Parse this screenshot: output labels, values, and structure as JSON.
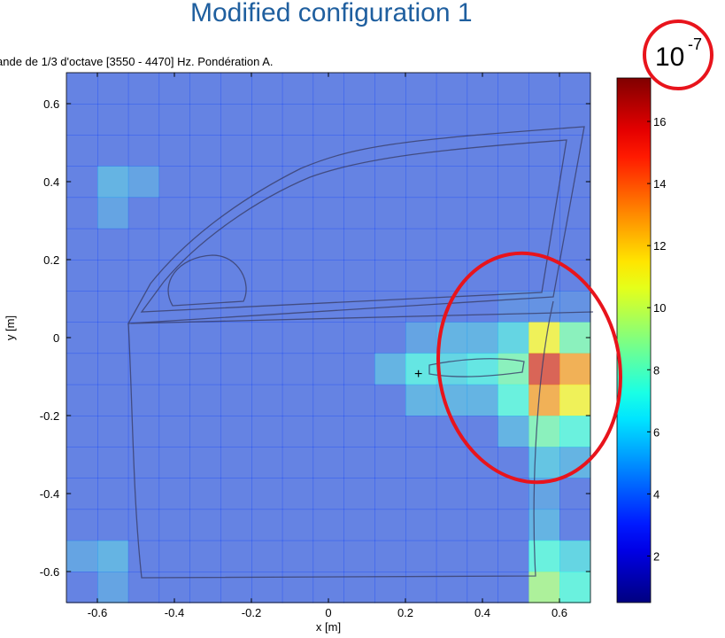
{
  "chart_data": {
    "type": "heatmap",
    "title": "Modified configuration 1",
    "subtitle": "ande de 1/3 d'octave [3550 - 4470] Hz. Pondération A.",
    "x_label": "x [m]",
    "y_label": "y [m]",
    "scale_annotation": {
      "base": "10",
      "exponent": "-7"
    },
    "x": [
      -0.64,
      -0.56,
      -0.48,
      -0.4,
      -0.32,
      -0.24,
      -0.16,
      -0.08,
      0,
      0.08,
      0.16,
      0.24,
      0.32,
      0.4,
      0.48,
      0.56,
      0.64
    ],
    "y": [
      0.64,
      0.56,
      0.48,
      0.4,
      0.32,
      0.24,
      0.16,
      0.08,
      0,
      -0.08,
      -0.16,
      -0.24,
      -0.32,
      -0.4,
      -0.48,
      -0.56,
      -0.64
    ],
    "z": [
      [
        3.5,
        3.5,
        3.5,
        3.5,
        3.5,
        3.5,
        3.5,
        3.5,
        3.5,
        3.5,
        3.5,
        3.5,
        3.5,
        3.5,
        3.5,
        3.5,
        3.5
      ],
      [
        3.5,
        3.5,
        3.5,
        3.5,
        3.5,
        3.5,
        3.5,
        3.5,
        3.5,
        3.5,
        3.5,
        3.5,
        3.5,
        3.5,
        3.5,
        3.5,
        3.5
      ],
      [
        3.5,
        3.5,
        3.5,
        3.5,
        3.5,
        3.5,
        3.5,
        3.5,
        3.5,
        3.5,
        3.5,
        3.5,
        3.5,
        3.5,
        3.5,
        3.5,
        3.5
      ],
      [
        3.5,
        5,
        4.5,
        3.5,
        3.5,
        3.5,
        3.5,
        3.5,
        3.5,
        3.5,
        3.5,
        3.5,
        3.5,
        3.5,
        3.5,
        3.5,
        3.5
      ],
      [
        3.5,
        4.5,
        3.5,
        3.5,
        3.5,
        3.5,
        3.5,
        3.5,
        3.5,
        3.5,
        3.5,
        3.5,
        3.5,
        3.5,
        3.5,
        3.5,
        3.5
      ],
      [
        3.5,
        3.5,
        3.5,
        3.5,
        3.5,
        3.5,
        3.5,
        3.5,
        3.5,
        3.5,
        3.5,
        3.5,
        3.5,
        3.5,
        3.5,
        3.5,
        3.5
      ],
      [
        3.5,
        3.5,
        3.5,
        3.5,
        3.5,
        3.5,
        3.5,
        3.5,
        3.5,
        3.5,
        3.5,
        3.5,
        3.5,
        3.5,
        3.5,
        3.5,
        3.5
      ],
      [
        3.5,
        3.5,
        3.5,
        3.5,
        3.5,
        3.5,
        3.5,
        3.5,
        3.5,
        3.5,
        3.5,
        3.5,
        3.5,
        3.5,
        4,
        4,
        4
      ],
      [
        3.5,
        3.5,
        3.5,
        3.5,
        3.5,
        3.5,
        3.5,
        3.5,
        3.5,
        3.5,
        3.5,
        4.5,
        5,
        5,
        6,
        11,
        8
      ],
      [
        3.5,
        3.5,
        3.5,
        3.5,
        3.5,
        3.5,
        3.5,
        3.5,
        3.5,
        3.5,
        5,
        6.5,
        6,
        6.5,
        8,
        16,
        13
      ],
      [
        3.5,
        3.5,
        3.5,
        3.5,
        3.5,
        3.5,
        3.5,
        3.5,
        3.5,
        3.5,
        3.5,
        5,
        5,
        5,
        7,
        13,
        11
      ],
      [
        3.5,
        3.5,
        3.5,
        3.5,
        3.5,
        3.5,
        3.5,
        3.5,
        3.5,
        3.5,
        3.5,
        3.5,
        3.5,
        3.5,
        5,
        8,
        7
      ],
      [
        3.5,
        3.5,
        3.5,
        3.5,
        3.5,
        3.5,
        3.5,
        3.5,
        3.5,
        3.5,
        3.5,
        3.5,
        3.5,
        3.5,
        3.5,
        5.5,
        5
      ],
      [
        3.5,
        3.5,
        3.5,
        3.5,
        3.5,
        3.5,
        3.5,
        3.5,
        3.5,
        3.5,
        3.5,
        3.5,
        3.5,
        3.5,
        3.5,
        4.5,
        3.5
      ],
      [
        3.5,
        3.5,
        3.5,
        3.5,
        3.5,
        3.5,
        3.5,
        3.5,
        3.5,
        3.5,
        3.5,
        3.5,
        3.5,
        3.5,
        3.5,
        5,
        3.5
      ],
      [
        4.5,
        5,
        3.5,
        3.5,
        3.5,
        3.5,
        3.5,
        3.5,
        3.5,
        3.5,
        3.5,
        3.5,
        3.5,
        3.5,
        3.5,
        7,
        6
      ],
      [
        3.5,
        4.5,
        3.5,
        3.5,
        3.5,
        3.5,
        3.5,
        3.5,
        3.5,
        3.5,
        3.5,
        3.5,
        3.5,
        3.5,
        3.5,
        9,
        7
      ]
    ],
    "xlim": [
      -0.68,
      0.68
    ],
    "ylim": [
      -0.68,
      0.68
    ],
    "xticks": [
      -0.6,
      -0.4,
      -0.2,
      0,
      0.2,
      0.4,
      0.6
    ],
    "yticks": [
      -0.6,
      -0.4,
      -0.2,
      0,
      0.2,
      0.4,
      0.6
    ],
    "clim": [
      0.5,
      17.4
    ],
    "colorbar_ticks": [
      2,
      4,
      6,
      8,
      10,
      12,
      14,
      16
    ],
    "colormap": "jet"
  }
}
